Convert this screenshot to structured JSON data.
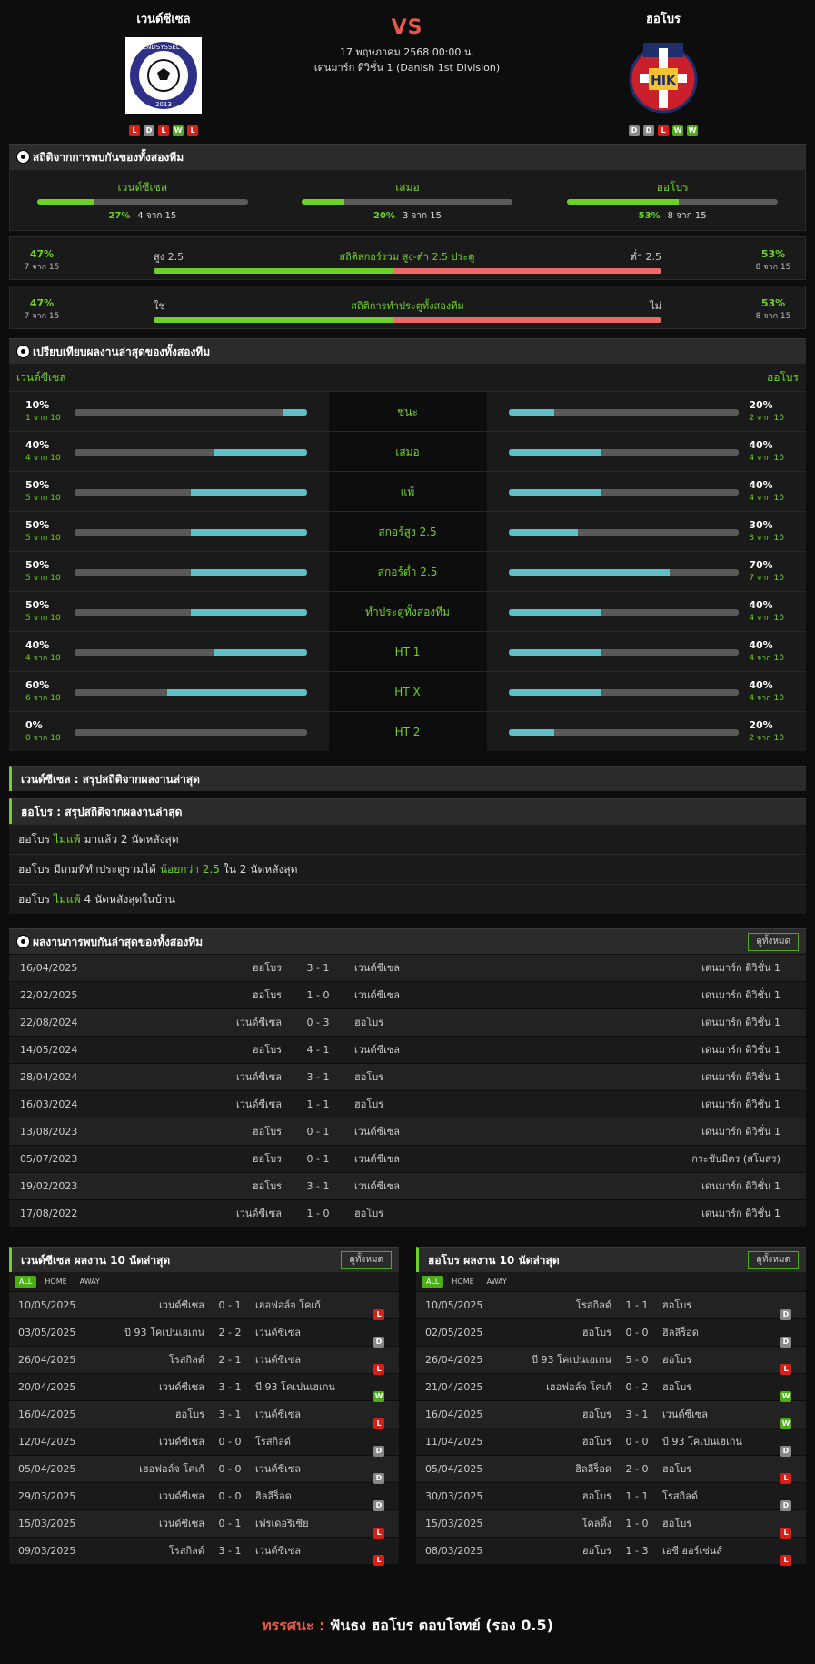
{
  "header": {
    "home": {
      "name": "เวนด์ซีเซล",
      "form": [
        "L",
        "D",
        "L",
        "W",
        "L"
      ]
    },
    "away": {
      "name": "ฮอโบร",
      "form": [
        "D",
        "D",
        "L",
        "W",
        "W"
      ]
    },
    "vs": "VS",
    "date": "17 พฤษภาคม 2568 00:00 น.",
    "league": "เดนมาร์ก ดิวิชั่น 1 (Danish 1st Division)",
    "home_logo_text": "VENDSYSSEL FF",
    "home_logo_year": "2013",
    "away_logo_text": "HIK"
  },
  "h2h_stats": {
    "title": "สถิติจากการพบกันของทั้งสองทีม",
    "cols": [
      {
        "label": "เวนด์ซีเซล",
        "pct": "27%",
        "sub": "4 จาก 15",
        "value": 0.27
      },
      {
        "label": "เสมอ",
        "pct": "20%",
        "sub": "3 จาก 15",
        "value": 0.2
      },
      {
        "label": "ฮอโบร",
        "pct": "53%",
        "sub": "8 จาก 15",
        "value": 0.53
      }
    ],
    "ou": {
      "center": "สถิติสกอร์รวม สูง-ต่ำ 2.5 ประตู",
      "left_label": "สูง 2.5",
      "right_label": "ต่ำ 2.5",
      "left_pct": "47%",
      "left_sub": "7 จาก 15",
      "right_pct": "53%",
      "right_sub": "8 จาก 15",
      "value": 0.47
    },
    "btts": {
      "center": "สถิติการทำประตูทั้งสองทีม",
      "left_label": "ใช่",
      "right_label": "ไม่",
      "left_pct": "47%",
      "left_sub": "7 จาก 15",
      "right_pct": "53%",
      "right_sub": "8 จาก 15",
      "value": 0.47
    }
  },
  "compare": {
    "title": "เปรียบเทียบผลงานล่าสุดของทั้งสองทีม",
    "home": "เวนด์ซีเซล",
    "away": "ฮอโบร",
    "rows": [
      {
        "label": "ชนะ",
        "hp": "10%",
        "hs": "1 จาก 10",
        "hv": 0.1,
        "ap": "20%",
        "as": "2 จาก 10",
        "av": 0.2
      },
      {
        "label": "เสมอ",
        "hp": "40%",
        "hs": "4 จาก 10",
        "hv": 0.4,
        "ap": "40%",
        "as": "4 จาก 10",
        "av": 0.4
      },
      {
        "label": "แพ้",
        "hp": "50%",
        "hs": "5 จาก 10",
        "hv": 0.5,
        "ap": "40%",
        "as": "4 จาก 10",
        "av": 0.4
      },
      {
        "label": "สกอร์สูง 2.5",
        "hp": "50%",
        "hs": "5 จาก 10",
        "hv": 0.5,
        "ap": "30%",
        "as": "3 จาก 10",
        "av": 0.3
      },
      {
        "label": "สกอร์ต่ำ 2.5",
        "hp": "50%",
        "hs": "5 จาก 10",
        "hv": 0.5,
        "ap": "70%",
        "as": "7 จาก 10",
        "av": 0.7
      },
      {
        "label": "ทำประตูทั้งสองทีม",
        "hp": "50%",
        "hs": "5 จาก 10",
        "hv": 0.5,
        "ap": "40%",
        "as": "4 จาก 10",
        "av": 0.4
      },
      {
        "label": "HT 1",
        "hp": "40%",
        "hs": "4 จาก 10",
        "hv": 0.4,
        "ap": "40%",
        "as": "4 จาก 10",
        "av": 0.4
      },
      {
        "label": "HT X",
        "hp": "60%",
        "hs": "6 จาก 10",
        "hv": 0.6,
        "ap": "40%",
        "as": "4 จาก 10",
        "av": 0.4
      },
      {
        "label": "HT 2",
        "hp": "0%",
        "hs": "0 จาก 10",
        "hv": 0.0,
        "ap": "20%",
        "as": "2 จาก 10",
        "av": 0.2
      }
    ]
  },
  "summary": {
    "home_title": "เวนด์ซีเซล : สรุปสถิติจากผลงานล่าสุด",
    "away_title": "ฮอโบร : สรุปสถิติจากผลงานล่าสุด",
    "rows": [
      {
        "a": "ฮอโบร",
        "b": "ไม่แพ้",
        "c": "มาแล้ว 2 นัดหลังสุด"
      },
      {
        "a": "ฮอโบร  มีเกมที่ทำประตูรวมได้",
        "b": "น้อยกว่า  2.5",
        "c": "ใน 2 นัดหลังสุด"
      },
      {
        "a": "ฮอโบร",
        "b": "ไม่แพ้",
        "c": "4  นัดหลังสุดในบ้าน"
      }
    ]
  },
  "h2h_matches": {
    "title": "ผลงานการพบกันล่าสุดของทั้งสองทีม",
    "view_all": "ดูทั้งหมด",
    "rows": [
      [
        "16/04/2025",
        "ฮอโบร",
        "3 - 1",
        "เวนด์ซีเซล",
        "เดนมาร์ก ดิวิชั่น 1"
      ],
      [
        "22/02/2025",
        "ฮอโบร",
        "1 - 0",
        "เวนด์ซีเซล",
        "เดนมาร์ก ดิวิชั่น 1"
      ],
      [
        "22/08/2024",
        "เวนด์ซีเซล",
        "0 - 3",
        "ฮอโบร",
        "เดนมาร์ก ดิวิชั่น 1"
      ],
      [
        "14/05/2024",
        "ฮอโบร",
        "4 - 1",
        "เวนด์ซีเซล",
        "เดนมาร์ก ดิวิชั่น 1"
      ],
      [
        "28/04/2024",
        "เวนด์ซีเซล",
        "3 - 1",
        "ฮอโบร",
        "เดนมาร์ก ดิวิชั่น 1"
      ],
      [
        "16/03/2024",
        "เวนด์ซีเซล",
        "1 - 1",
        "ฮอโบร",
        "เดนมาร์ก ดิวิชั่น 1"
      ],
      [
        "13/08/2023",
        "ฮอโบร",
        "0 - 1",
        "เวนด์ซีเซล",
        "เดนมาร์ก ดิวิชั่น 1"
      ],
      [
        "05/07/2023",
        "ฮอโบร",
        "0 - 1",
        "เวนด์ซีเซล",
        "กระชับมิตร (สโมสร)"
      ],
      [
        "19/02/2023",
        "ฮอโบร",
        "3 - 1",
        "เวนด์ซีเซล",
        "เดนมาร์ก ดิวิชั่น 1"
      ],
      [
        "17/08/2022",
        "เวนด์ซีเซล",
        "1 - 0",
        "ฮอโบร",
        "เดนมาร์ก ดิวิชั่น 1"
      ]
    ]
  },
  "form_tables": [
    {
      "title": "เวนด์ซีเซล ผลงาน 10 นัดล่าสุด",
      "view_all": "ดูทั้งหมด",
      "tabs": [
        "ALL",
        "HOME",
        "AWAY"
      ],
      "rows": [
        [
          "10/05/2025",
          "เวนด์ซีเซล",
          "0 - 1",
          "เฮอฟอล์จ โคเก้",
          "L"
        ],
        [
          "03/05/2025",
          "บี 93 โคเปนเฮเกน",
          "2 - 2",
          "เวนด์ซีเซล",
          "D"
        ],
        [
          "26/04/2025",
          "โรสกิลด์",
          "2 - 1",
          "เวนด์ซีเซล",
          "L"
        ],
        [
          "20/04/2025",
          "เวนด์ซีเซล",
          "3 - 1",
          "บี 93 โคเปนเฮเกน",
          "W"
        ],
        [
          "16/04/2025",
          "ฮอโบร",
          "3 - 1",
          "เวนด์ซีเซล",
          "L"
        ],
        [
          "12/04/2025",
          "เวนด์ซีเซล",
          "0 - 0",
          "โรสกิลด์",
          "D"
        ],
        [
          "05/04/2025",
          "เฮอฟอล์จ โคเก้",
          "0 - 0",
          "เวนด์ซีเซล",
          "D"
        ],
        [
          "29/03/2025",
          "เวนด์ซีเซล",
          "0 - 0",
          "ฮิลลีร็อด",
          "D"
        ],
        [
          "15/03/2025",
          "เวนด์ซีเซล",
          "0 - 1",
          "เฟรเดอริเซีย",
          "L"
        ],
        [
          "09/03/2025",
          "โรสกิลด์",
          "3 - 1",
          "เวนด์ซีเซล",
          "L"
        ]
      ]
    },
    {
      "title": "ฮอโบร ผลงาน 10 นัดล่าสุด",
      "view_all": "ดูทั้งหมด",
      "tabs": [
        "ALL",
        "HOME",
        "AWAY"
      ],
      "rows": [
        [
          "10/05/2025",
          "โรสกิลด์",
          "1 - 1",
          "ฮอโบร",
          "D"
        ],
        [
          "02/05/2025",
          "ฮอโบร",
          "0 - 0",
          "ฮิลลีร็อด",
          "D"
        ],
        [
          "26/04/2025",
          "บี 93 โคเปนเฮเกน",
          "5 - 0",
          "ฮอโบร",
          "L"
        ],
        [
          "21/04/2025",
          "เฮอฟอล์จ โคเก้",
          "0 - 2",
          "ฮอโบร",
          "W"
        ],
        [
          "16/04/2025",
          "ฮอโบร",
          "3 - 1",
          "เวนด์ซีเซล",
          "W"
        ],
        [
          "11/04/2025",
          "ฮอโบร",
          "0 - 0",
          "บี 93 โคเปนเฮเกน",
          "D"
        ],
        [
          "05/04/2025",
          "ฮิลลีร็อด",
          "2 - 0",
          "ฮอโบร",
          "L"
        ],
        [
          "30/03/2025",
          "ฮอโบร",
          "1 - 1",
          "โรสกิลด์",
          "D"
        ],
        [
          "15/03/2025",
          "โคลดิ้ง",
          "1 - 0",
          "ฮอโบร",
          "L"
        ],
        [
          "08/03/2025",
          "ฮอโบร",
          "1 - 3",
          "เอซี ฮอร์เซ่นส์",
          "L"
        ]
      ]
    }
  ],
  "tip": {
    "label": "ทรรศนะ",
    "colon": " : ",
    "text": "ฟันธง ฮอโบร ตอบโจทย์ (รอง 0.5)"
  },
  "colors": {
    "green": "#6fd02a",
    "teal": "#5bc0c8",
    "red": "#ef6b6b",
    "loss": "#d91e18"
  }
}
